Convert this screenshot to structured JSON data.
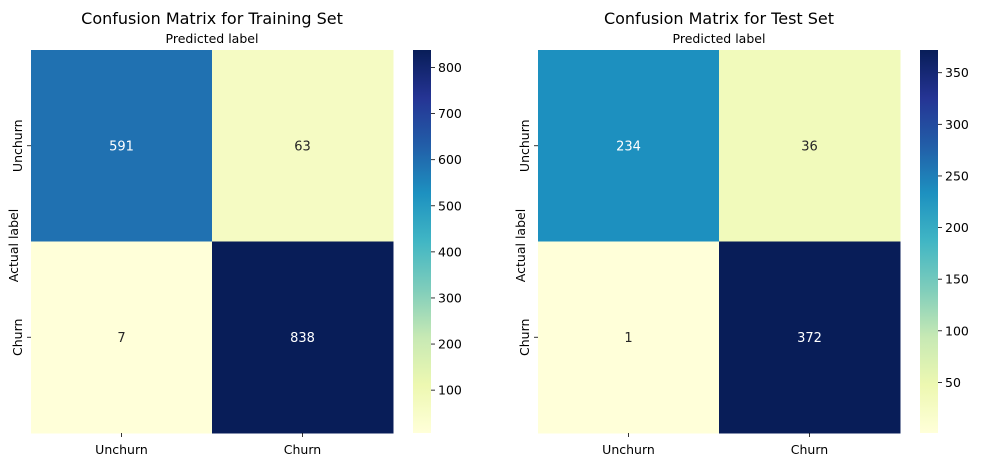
{
  "chart_data": [
    {
      "type": "heatmap",
      "title": "Confusion Matrix for Training Set",
      "xlabel": "Predicted label",
      "ylabel": "Actual label",
      "x_categories": [
        "Unchurn",
        "Churn"
      ],
      "y_categories": [
        "Unchurn",
        "Churn"
      ],
      "values": [
        [
          591,
          63
        ],
        [
          7,
          838
        ]
      ],
      "colormap": "YlGnBu",
      "colorbar": {
        "range": [
          7,
          838
        ],
        "ticks": [
          100,
          200,
          300,
          400,
          500,
          600,
          700,
          800
        ]
      }
    },
    {
      "type": "heatmap",
      "title": "Confusion Matrix for Test Set",
      "xlabel": "Predicted label",
      "ylabel": "Actual label",
      "x_categories": [
        "Unchurn",
        "Churn"
      ],
      "y_categories": [
        "Unchurn",
        "Churn"
      ],
      "values": [
        [
          234,
          36
        ],
        [
          1,
          372
        ]
      ],
      "colormap": "YlGnBu",
      "colorbar": {
        "range": [
          1,
          372
        ],
        "ticks": [
          50,
          100,
          150,
          200,
          250,
          300,
          350
        ]
      }
    }
  ],
  "colors": {
    "ylgnbu_stops": [
      "#ffffd9",
      "#edf8b1",
      "#c7e9b4",
      "#7fcdbb",
      "#41b6c4",
      "#1d91c0",
      "#225ea8",
      "#253494",
      "#081d58"
    ]
  }
}
